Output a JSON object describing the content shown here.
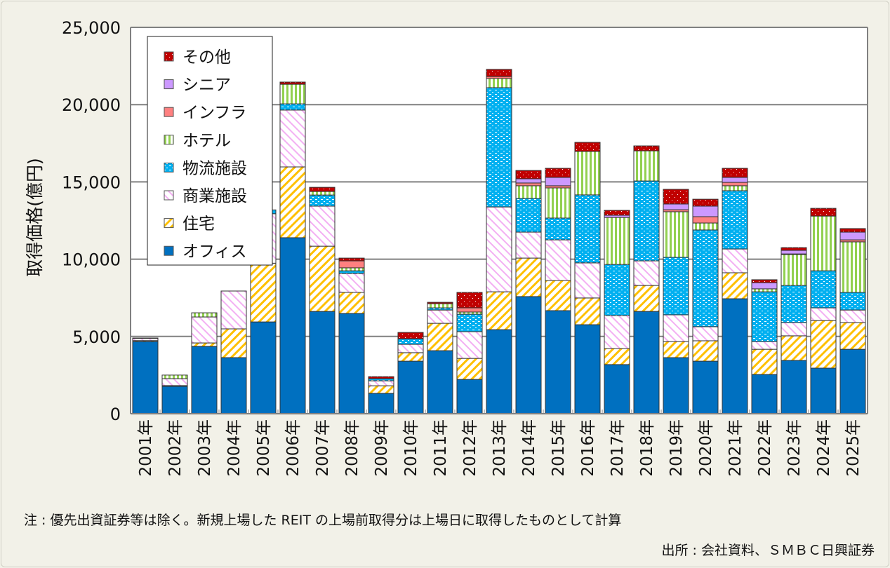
{
  "chart_data": {
    "type": "bar",
    "stacked": true,
    "ylabel": "取得価格(億円)",
    "ylim": [
      0,
      25000
    ],
    "yticks": [
      "0",
      "5,000",
      "10,000",
      "15,000",
      "20,000",
      "25,000"
    ],
    "ytick_values": [
      0,
      5000,
      10000,
      15000,
      20000,
      25000
    ],
    "grid": true,
    "legend_position": "top-left",
    "categories": [
      "2001年",
      "2002年",
      "2003年",
      "2004年",
      "2005年",
      "2006年",
      "2007年",
      "2008年",
      "2009年",
      "2010年",
      "2011年",
      "2012年",
      "2013年",
      "2014年",
      "2015年",
      "2016年",
      "2017年",
      "2018年",
      "2019年",
      "2020年",
      "2021年",
      "2022年",
      "2023年",
      "2024年",
      "2025年"
    ],
    "series": [
      {
        "name": "オフィス",
        "color": "#0070c0",
        "pattern": "solid",
        "values": [
          4670,
          1770,
          4360,
          3630,
          5940,
          11390,
          6620,
          6490,
          1320,
          3400,
          4080,
          2220,
          5440,
          7580,
          6670,
          5760,
          3180,
          6620,
          3630,
          3400,
          7440,
          2540,
          3450,
          2950,
          4170
        ]
      },
      {
        "name": "住宅",
        "color": "#ffc000",
        "pattern": "diagonal",
        "values": [
          60,
          50,
          220,
          1860,
          3800,
          4580,
          4220,
          1360,
          490,
          550,
          1770,
          1360,
          2450,
          2490,
          1950,
          1730,
          1040,
          1680,
          1040,
          1320,
          1680,
          1630,
          1590,
          3080,
          1730
        ]
      },
      {
        "name": "商業施設",
        "color": "#f0a0f0",
        "pattern": "diagonal-reverse",
        "values": [
          150,
          450,
          1680,
          2450,
          3200,
          3680,
          2590,
          1220,
          320,
          540,
          860,
          1730,
          5490,
          1680,
          2630,
          2270,
          2130,
          1590,
          1730,
          910,
          1540,
          500,
          860,
          820,
          810
        ]
      },
      {
        "name": "物流施設",
        "color": "#00b0f0",
        "pattern": "dashes",
        "values": [
          0,
          0,
          0,
          0,
          250,
          400,
          720,
          180,
          140,
          360,
          140,
          1130,
          7720,
          2180,
          1410,
          4400,
          3310,
          5170,
          3720,
          6260,
          3770,
          3220,
          2400,
          2400,
          1140
        ]
      },
      {
        "name": "ホテル",
        "color": "#92d050",
        "pattern": "vertical",
        "values": [
          0,
          230,
          270,
          0,
          0,
          1270,
          230,
          190,
          0,
          0,
          270,
          140,
          590,
          820,
          1950,
          2810,
          3040,
          1950,
          2950,
          450,
          320,
          190,
          2000,
          3540,
          3270
        ]
      },
      {
        "name": "インフラ",
        "color": "#ff8080",
        "pattern": "solid",
        "values": [
          0,
          0,
          0,
          0,
          0,
          0,
          0,
          450,
          0,
          0,
          0,
          270,
          130,
          180,
          140,
          0,
          0,
          0,
          130,
          410,
          220,
          0,
          40,
          0,
          130
        ]
      },
      {
        "name": "シニア",
        "color": "#cc99ff",
        "pattern": "solid",
        "values": [
          0,
          0,
          0,
          0,
          0,
          0,
          0,
          0,
          0,
          0,
          0,
          0,
          0,
          270,
          540,
          0,
          140,
          0,
          370,
          680,
          320,
          400,
          230,
          0,
          500
        ]
      },
      {
        "name": "その他",
        "color": "#c00000",
        "pattern": "dots",
        "values": [
          20,
          0,
          0,
          0,
          0,
          140,
          270,
          180,
          130,
          410,
          90,
          1000,
          460,
          540,
          590,
          590,
          320,
          320,
          950,
          450,
          590,
          190,
          180,
          500,
          230
        ]
      }
    ]
  },
  "note": "注 : 優先出資証券等は除く。新規上場した REIT の上場前取得分は上場日に取得したものとして計算",
  "source": "出所 : 会社資料、ＳＭＢＣ日興証券"
}
